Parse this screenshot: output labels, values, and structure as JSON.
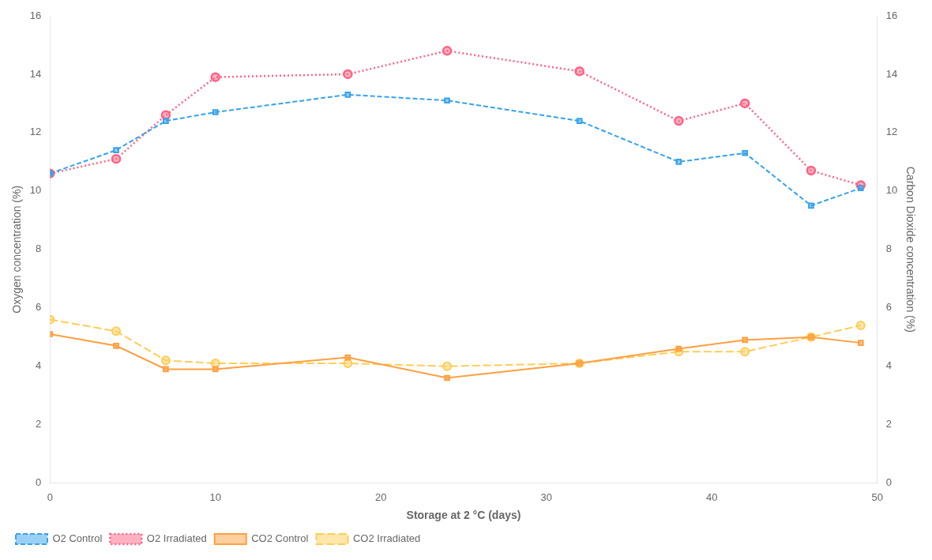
{
  "chart_data": {
    "type": "line",
    "x": [
      0,
      4,
      7,
      10,
      18,
      24,
      32,
      38,
      42,
      46,
      49
    ],
    "series": [
      {
        "name": "O2 Control",
        "values": [
          10.6,
          11.4,
          12.4,
          12.7,
          13.3,
          13.1,
          12.4,
          11.0,
          11.3,
          9.5,
          10.1
        ],
        "marker": "square",
        "line_style": "dashed"
      },
      {
        "name": "O2 Irradiated",
        "values": [
          10.6,
          11.1,
          12.6,
          13.9,
          14.0,
          14.8,
          14.1,
          12.4,
          13.0,
          10.7,
          10.2
        ],
        "marker": "circle",
        "line_style": "dotted"
      },
      {
        "name": "CO2 Control",
        "values": [
          5.1,
          4.7,
          3.9,
          3.9,
          4.3,
          3.6,
          4.1,
          4.6,
          4.9,
          5.0,
          4.8
        ],
        "marker": "square",
        "line_style": "solid"
      },
      {
        "name": "CO2 Irradiated",
        "values": [
          5.6,
          5.2,
          4.2,
          4.1,
          4.1,
          4.0,
          4.1,
          4.5,
          4.5,
          5.0,
          5.4
        ],
        "marker": "circle",
        "line_style": "longdash"
      }
    ],
    "xlabel": "Storage at 2 °C (days)",
    "ylabel": "Oxygen concentration (%)",
    "y2label": "Carbon Dioxide concentration (%)",
    "xlim": [
      0,
      50
    ],
    "xticks": [
      0,
      10,
      20,
      30,
      40,
      50
    ],
    "ylim": [
      0,
      16
    ],
    "yticks": [
      0,
      2,
      4,
      6,
      8,
      10,
      12,
      14,
      16
    ],
    "y2lim": [
      0,
      16
    ],
    "y2ticks": [
      0,
      2,
      4,
      6,
      8,
      10,
      12,
      14,
      16
    ],
    "grid": false,
    "legend": "lower left"
  }
}
